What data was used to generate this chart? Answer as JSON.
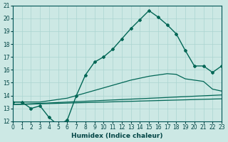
{
  "xlabel": "Humidex (Indice chaleur)",
  "bg_color": "#cce8e4",
  "grid_color": "#aad4d0",
  "line_color": "#006655",
  "xlim": [
    0,
    23
  ],
  "ylim": [
    12,
    21
  ],
  "yticks": [
    12,
    13,
    14,
    15,
    16,
    17,
    18,
    19,
    20,
    21
  ],
  "xticks": [
    0,
    1,
    2,
    3,
    4,
    5,
    6,
    7,
    8,
    9,
    10,
    11,
    12,
    13,
    14,
    15,
    16,
    17,
    18,
    19,
    20,
    21,
    22,
    23
  ],
  "main_x": [
    0,
    1,
    2,
    3,
    4,
    5,
    6,
    7,
    8,
    9,
    10,
    11,
    12,
    13,
    14,
    15,
    16,
    17,
    18,
    19,
    20,
    21,
    22,
    23
  ],
  "main_y": [
    13.5,
    13.5,
    13.0,
    13.2,
    12.3,
    11.7,
    12.1,
    14.0,
    15.6,
    16.6,
    17.0,
    17.6,
    18.4,
    19.2,
    19.9,
    20.6,
    20.1,
    19.5,
    18.8,
    17.5,
    16.3,
    16.3,
    15.8,
    16.3
  ],
  "smooth_x": [
    0,
    1,
    2,
    3,
    4,
    5,
    6,
    7,
    8,
    9,
    10,
    11,
    12,
    13,
    14,
    15,
    16,
    17,
    18,
    19,
    20,
    21,
    22,
    23
  ],
  "smooth_y": [
    13.5,
    13.5,
    13.5,
    13.5,
    13.6,
    13.7,
    13.8,
    14.0,
    14.2,
    14.4,
    14.6,
    14.8,
    15.0,
    15.2,
    15.35,
    15.5,
    15.6,
    15.7,
    15.65,
    15.3,
    15.2,
    15.1,
    14.5,
    14.35
  ],
  "trend1_x": [
    0,
    23
  ],
  "trend1_y": [
    13.3,
    14.05
  ],
  "trend2_x": [
    0,
    23
  ],
  "trend2_y": [
    13.3,
    13.75
  ]
}
